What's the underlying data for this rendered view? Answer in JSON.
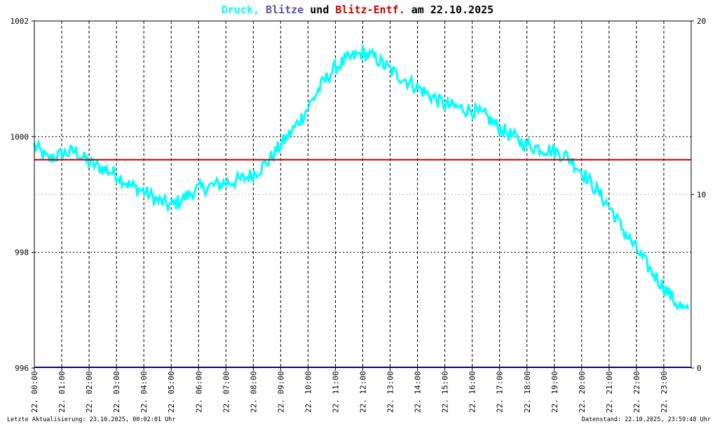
{
  "chart_data": {
    "type": "line",
    "title": {
      "parts": [
        {
          "text": "Druck,",
          "color": "#00ffff"
        },
        {
          "text": "Blitze",
          "color": "#5555aa"
        },
        {
          "text": "und",
          "color": "#000000"
        },
        {
          "text": "Blitz-Entf.",
          "color": "#cc0000"
        },
        {
          "text": "am 22.10.2025",
          "color": "#000000"
        }
      ]
    },
    "y_left": {
      "min": 996,
      "max": 1002,
      "ticks": [
        "996",
        "998",
        "1000",
        "1002"
      ]
    },
    "y_right": {
      "min": 0,
      "max": 20,
      "ticks": [
        "0",
        "10",
        "20"
      ],
      "highlight_tick": "10"
    },
    "x_labels": [
      "22. 00:00",
      "22. 01:00",
      "22. 02:00",
      "22. 03:00",
      "22. 04:00",
      "22. 05:00",
      "22. 06:00",
      "22. 07:00",
      "22. 08:00",
      "22. 09:00",
      "22. 10:00",
      "22. 11:00",
      "22. 12:00",
      "22. 13:00",
      "22. 14:00",
      "22. 15:00",
      "22. 16:00",
      "22. 17:00",
      "22. 18:00",
      "22. 19:00",
      "22. 20:00",
      "22. 21:00",
      "22. 22:00",
      "22. 23:00"
    ],
    "series": [
      {
        "color": "#00ffff",
        "axis": "left",
        "x_hours": [
          0,
          0.5,
          1.0,
          1.5,
          2.0,
          2.5,
          3.0,
          3.5,
          4.0,
          4.5,
          5.0,
          5.5,
          6.0,
          6.5,
          7.0,
          7.5,
          8.0,
          8.5,
          9.0,
          9.5,
          10.0,
          10.5,
          11.0,
          11.5,
          12.0,
          12.5,
          13.0,
          13.5,
          14.0,
          14.5,
          15.0,
          15.5,
          16.0,
          16.5,
          17.0,
          17.5,
          18.0,
          18.5,
          19.0,
          19.5,
          20.0,
          20.5,
          21.0,
          21.5,
          22.0,
          22.5,
          23.0,
          23.5,
          23.9
        ],
        "values": [
          999.85,
          999.6,
          999.7,
          999.75,
          999.55,
          999.45,
          999.35,
          999.15,
          999.05,
          998.9,
          998.8,
          998.95,
          999.1,
          999.15,
          999.2,
          999.25,
          999.35,
          999.55,
          999.85,
          1000.15,
          1000.5,
          1000.9,
          1001.2,
          1001.35,
          1001.45,
          1001.35,
          1001.15,
          1001.0,
          1000.85,
          1000.7,
          1000.55,
          1000.5,
          1000.45,
          1000.35,
          1000.15,
          1000.0,
          999.85,
          999.8,
          999.75,
          999.65,
          999.4,
          999.1,
          998.8,
          998.4,
          998.05,
          997.7,
          997.4,
          997.1,
          996.95
        ],
        "noise": 0.13
      },
      {
        "color": "#000080",
        "axis": "right",
        "description": "Blitze",
        "values_constant": 0
      }
    ],
    "reference_line": {
      "color": "#cc0000",
      "axis": "right",
      "value": 12
    },
    "grid": true
  },
  "footer": {
    "left": "Letzte Aktualisierung: 23.10.2025, 00:02:01 Uhr",
    "right": "Datenstand: 22.10.2025, 23:59:48 Uhr"
  }
}
